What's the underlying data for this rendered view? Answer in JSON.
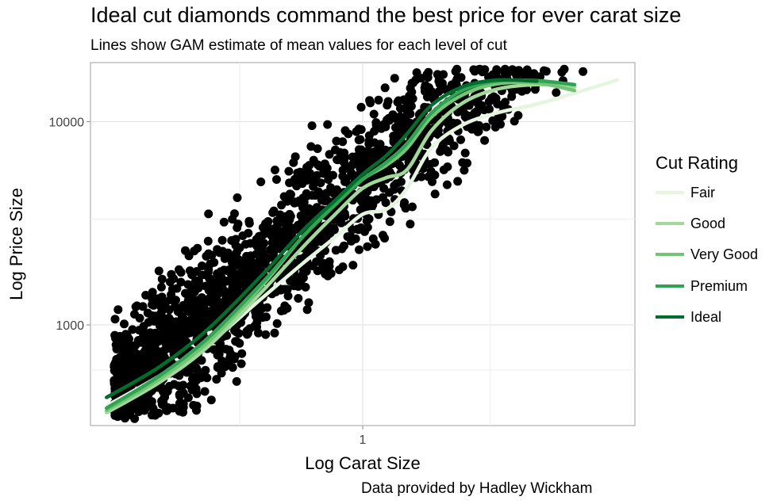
{
  "chart_data": {
    "type": "scatter",
    "title": "Ideal cut diamonds command the best price for ever carat size",
    "subtitle": "Lines show GAM estimate of mean values for each level of cut",
    "caption": "Data provided by Hadley Wickham",
    "xlabel": "Log Carat Size",
    "ylabel": "Log Price Size",
    "x_scale": "log",
    "y_scale": "log",
    "xlim": [
      0.2,
      5.0
    ],
    "ylim": [
      320,
      19500
    ],
    "x_ticks": [
      {
        "value": 1,
        "label": "1"
      }
    ],
    "y_ticks": [
      {
        "value": 1000,
        "label": "1000"
      },
      {
        "value": 10000,
        "label": "10000"
      }
    ],
    "grid": true,
    "points_color": "#000000",
    "legend": {
      "title": "Cut Rating",
      "position": "right",
      "entries": [
        {
          "name": "Fair",
          "color": "#e5f5e0"
        },
        {
          "name": "Good",
          "color": "#a1d99b"
        },
        {
          "name": "Very Good",
          "color": "#74c476"
        },
        {
          "name": "Premium",
          "color": "#31a354"
        },
        {
          "name": "Ideal",
          "color": "#006d2c"
        }
      ]
    },
    "series": [
      {
        "name": "Fair",
        "color": "#e5f5e0",
        "x": [
          0.22,
          0.3,
          0.4,
          0.55,
          0.7,
          0.85,
          1.0,
          1.15,
          1.3,
          1.5,
          1.8,
          2.2,
          2.8,
          3.5,
          4.5
        ],
        "y": [
          400,
          560,
          800,
          1350,
          2000,
          2700,
          3500,
          3700,
          4700,
          7400,
          9600,
          11000,
          12200,
          13800,
          16000
        ]
      },
      {
        "name": "Good",
        "color": "#a1d99b",
        "x": [
          0.22,
          0.3,
          0.4,
          0.55,
          0.7,
          0.85,
          1.0,
          1.15,
          1.3,
          1.5,
          1.8,
          2.2,
          2.8,
          3.5
        ],
        "y": [
          370,
          520,
          780,
          1450,
          2400,
          3500,
          4700,
          5300,
          5800,
          9000,
          12300,
          14400,
          15200,
          14800
        ]
      },
      {
        "name": "Very Good",
        "color": "#74c476",
        "x": [
          0.22,
          0.3,
          0.4,
          0.55,
          0.7,
          0.85,
          1.0,
          1.15,
          1.3,
          1.5,
          1.8,
          2.2,
          2.8,
          3.5
        ],
        "y": [
          380,
          540,
          820,
          1550,
          2700,
          3900,
          5200,
          6100,
          7400,
          10500,
          13500,
          15300,
          15500,
          14200
        ]
      },
      {
        "name": "Premium",
        "color": "#31a354",
        "x": [
          0.22,
          0.3,
          0.4,
          0.55,
          0.7,
          0.85,
          1.0,
          1.15,
          1.3,
          1.5,
          1.8,
          2.2,
          2.8,
          3.5
        ],
        "y": [
          390,
          560,
          860,
          1600,
          2700,
          3900,
          5200,
          6300,
          7800,
          11000,
          14200,
          15800,
          15900,
          15200
        ]
      },
      {
        "name": "Ideal",
        "color": "#006d2c",
        "x": [
          0.22,
          0.3,
          0.4,
          0.55,
          0.7,
          0.85,
          1.0,
          1.15,
          1.3,
          1.5,
          1.8,
          2.2,
          2.8
        ],
        "y": [
          440,
          620,
          950,
          1750,
          2900,
          4100,
          5500,
          6800,
          8700,
          12000,
          14800,
          16000,
          15800
        ]
      }
    ]
  }
}
